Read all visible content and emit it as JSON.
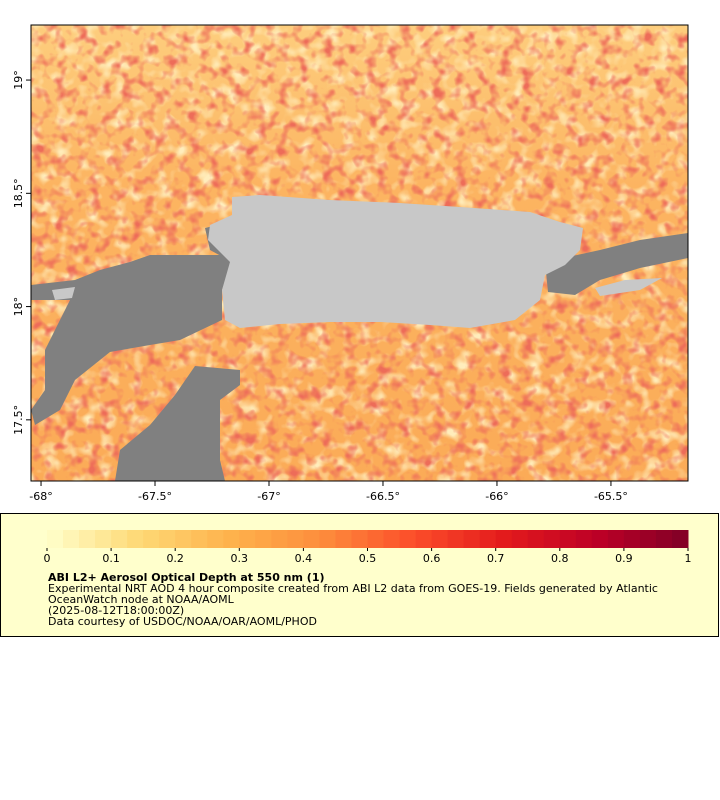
{
  "map": {
    "xlim": [
      -68.044,
      -65.162
    ],
    "ylim": [
      17.23,
      19.243
    ],
    "xticks": [
      {
        "value": -68,
        "label": "-68°"
      },
      {
        "value": -67.5,
        "label": "-67.5°"
      },
      {
        "value": -67,
        "label": "-67°"
      },
      {
        "value": -66.5,
        "label": "-66.5°"
      },
      {
        "value": -66,
        "label": "-66°"
      },
      {
        "value": -65.5,
        "label": "-65.5°"
      }
    ],
    "yticks": [
      {
        "value": 17.5,
        "label": "17.5°"
      },
      {
        "value": 18,
        "label": "18°"
      },
      {
        "value": 18.5,
        "label": "18.5°"
      },
      {
        "value": 19,
        "label": "19°"
      }
    ]
  },
  "colorbar": {
    "lim": [
      0,
      1
    ],
    "ticks": [
      0,
      0.1,
      0.2,
      0.3,
      0.4,
      0.5,
      0.6,
      0.7,
      0.8,
      0.9,
      1
    ],
    "colormap": [
      "#ffffcc",
      "#fed976",
      "#feb24c",
      "#fd8d3c",
      "#fc4e2a",
      "#e31a1c",
      "#bd0026",
      "#800026"
    ]
  },
  "caption": {
    "title": "ABI L2+ Aerosol Optical Depth at 550 nm (1)",
    "lines": [
      "Experimental NRT AOD 4 hour composite created from ABI L2 data from GOES-19. Fields generated by Atlantic",
      "OceanWatch node at NOAA/AOML",
      "(2025-08-12T18:00:00Z)",
      "Data courtesy of USDOC/NOAA/OAR/AOML/PHOD"
    ]
  }
}
